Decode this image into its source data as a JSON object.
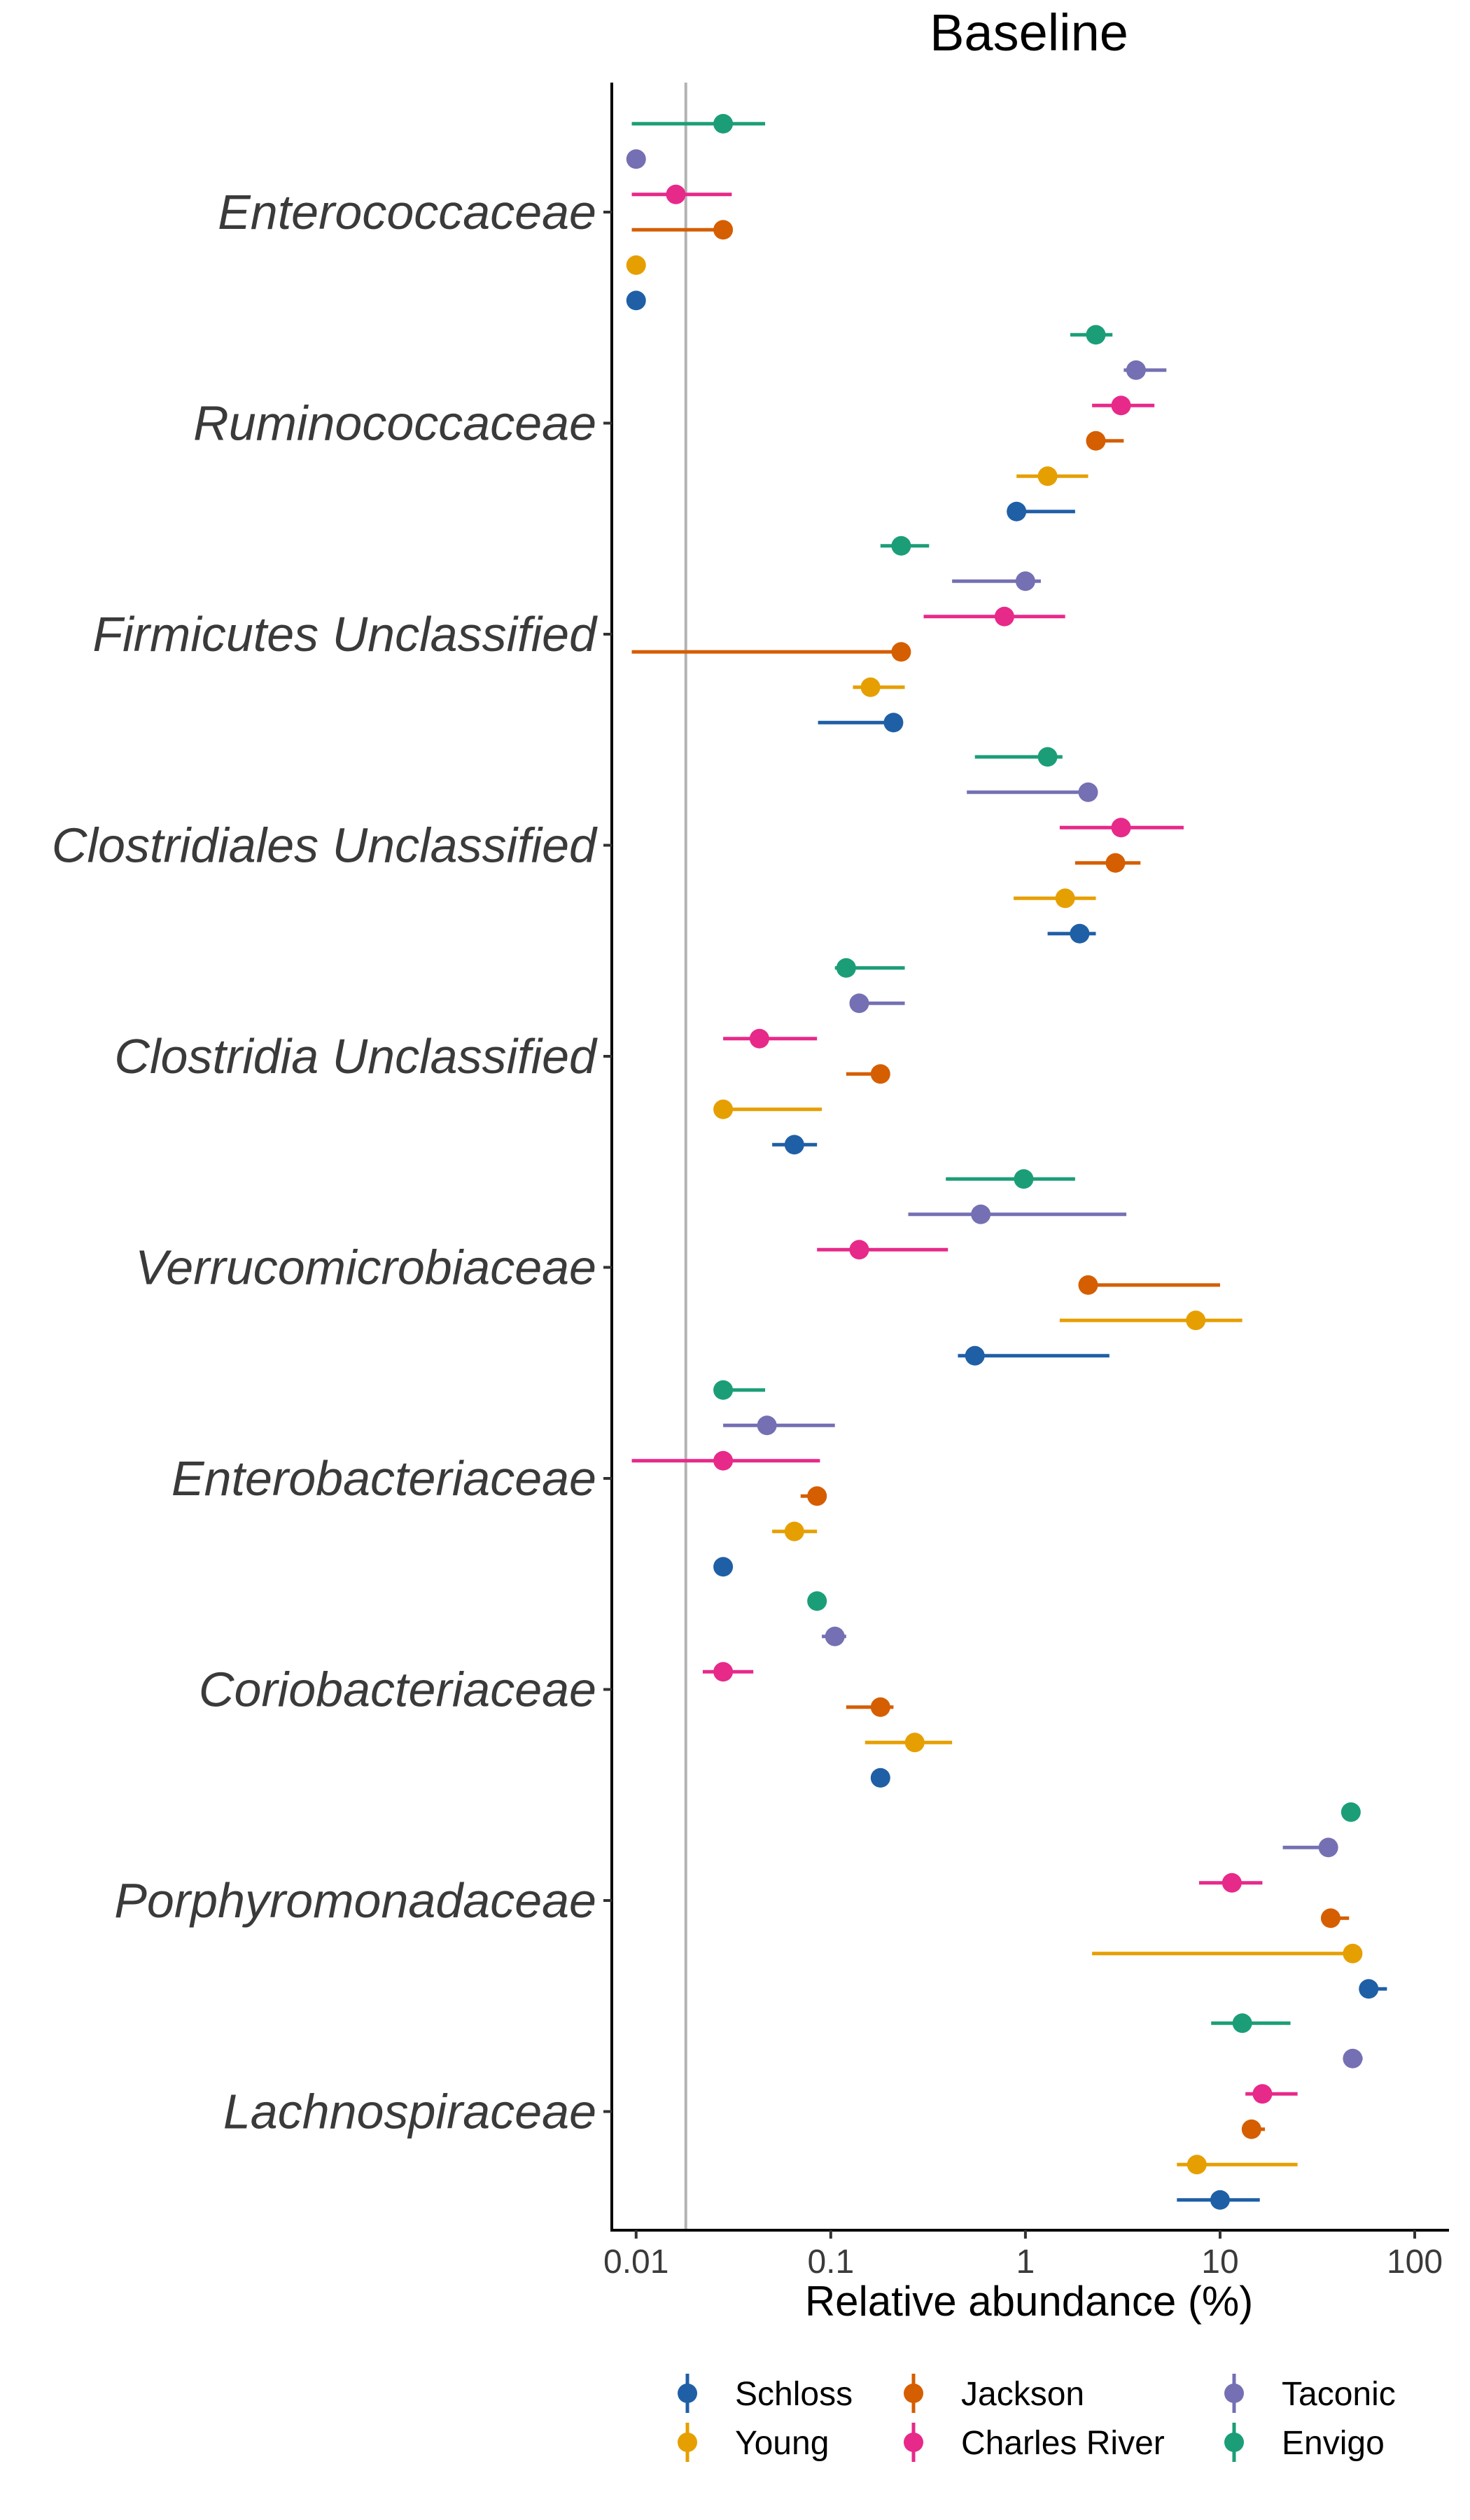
{
  "chart_data": {
    "type": "dot-errorbar",
    "title": "Baseline",
    "xlabel": "Relative abundance (%)",
    "x_scale": "log10",
    "xlim": [
      0.0075,
      150
    ],
    "x_ticks": [
      0.01,
      0.1,
      1,
      10,
      100
    ],
    "x_tick_labels": [
      "0.01",
      "0.1",
      "1",
      "10",
      "100"
    ],
    "reference_line": 0.018,
    "grid": false,
    "legend_position": "bottom",
    "categories": [
      "Enterococcaceae",
      "Ruminococcaceae",
      "Firmicutes Unclassified",
      "Clostridiales Unclassified",
      "Clostridia Unclassified",
      "Verrucomicrobiaceae",
      "Enterobacteriaceae",
      "Coriobacteriaceae",
      "Porphyromonadaceae",
      "Lachnospiraceae"
    ],
    "series": [
      {
        "name": "Schloss",
        "color": "#1F5FA6",
        "values": [
          0.01,
          0.9,
          0.21,
          1.9,
          0.065,
          0.55,
          0.028,
          0.18,
          58,
          10
        ],
        "lower": [
          0.01,
          0.88,
          0.086,
          1.3,
          0.05,
          0.45,
          0.028,
          0.18,
          55,
          6
        ],
        "upper": [
          0.01,
          1.8,
          0.21,
          2.3,
          0.085,
          2.7,
          0.028,
          0.18,
          72,
          16
        ]
      },
      {
        "name": "Young",
        "color": "#E69F00",
        "values": [
          0.01,
          1.3,
          0.16,
          1.6,
          0.028,
          7.5,
          0.065,
          0.27,
          48,
          7.6
        ],
        "lower": [
          0.01,
          0.9,
          0.13,
          0.87,
          0.028,
          1.5,
          0.05,
          0.15,
          2.2,
          6
        ],
        "upper": [
          0.01,
          2.1,
          0.24,
          2.3,
          0.09,
          13,
          0.085,
          0.42,
          48,
          25
        ]
      },
      {
        "name": "Jackson",
        "color": "#D55E00",
        "values": [
          0.028,
          2.3,
          0.23,
          2.9,
          0.18,
          2.1,
          0.085,
          0.18,
          37,
          14.5
        ],
        "lower": [
          0.0095,
          2.2,
          0.0095,
          1.8,
          0.12,
          2.1,
          0.07,
          0.12,
          37,
          13
        ],
        "upper": [
          0.028,
          3.2,
          0.23,
          3.9,
          0.19,
          10,
          0.085,
          0.21,
          46,
          17
        ]
      },
      {
        "name": "Charles River",
        "color": "#E7298A",
        "values": [
          0.016,
          3.1,
          0.78,
          3.1,
          0.043,
          0.14,
          0.028,
          0.028,
          11.5,
          16.5
        ],
        "lower": [
          0.0095,
          2.2,
          0.3,
          1.5,
          0.028,
          0.085,
          0.0095,
          0.022,
          7.8,
          13.5
        ],
        "upper": [
          0.031,
          4.6,
          1.6,
          6.5,
          0.085,
          0.4,
          0.088,
          0.04,
          16.5,
          25
        ]
      },
      {
        "name": "Taconic",
        "color": "#7570B3",
        "values": [
          0.01,
          3.7,
          1.0,
          2.1,
          0.14,
          0.59,
          0.047,
          0.105,
          36,
          48
        ],
        "lower": [
          0.01,
          3.2,
          0.42,
          0.5,
          0.13,
          0.25,
          0.028,
          0.09,
          21,
          44
        ],
        "upper": [
          0.01,
          5.3,
          1.2,
          2.3,
          0.24,
          3.3,
          0.105,
          0.12,
          36,
          54
        ]
      },
      {
        "name": "Envigo",
        "color": "#1B9E77",
        "values": [
          0.028,
          2.3,
          0.23,
          1.3,
          0.12,
          0.98,
          0.028,
          0.085,
          47,
          13
        ],
        "lower": [
          0.0095,
          1.7,
          0.18,
          0.55,
          0.105,
          0.39,
          0.028,
          0.085,
          47,
          9
        ],
        "upper": [
          0.046,
          2.8,
          0.32,
          1.55,
          0.24,
          1.8,
          0.046,
          0.085,
          47,
          23
        ]
      }
    ]
  }
}
